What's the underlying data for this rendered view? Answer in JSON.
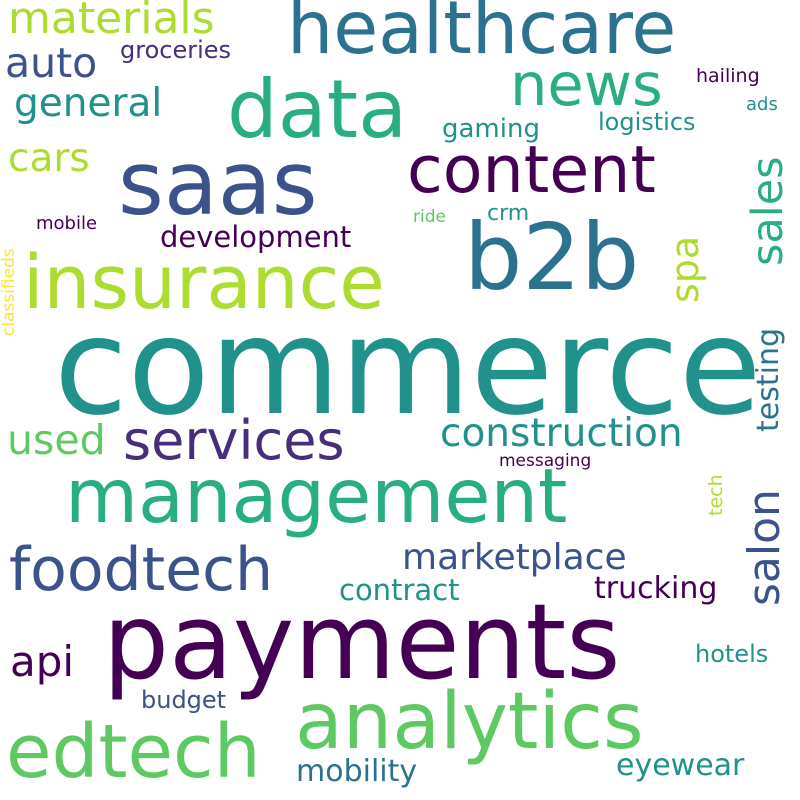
{
  "title": "word cloud",
  "palette": {
    "deep_purple": "#440154",
    "indigo": "#472d7b",
    "slate_blue": "#3b528b",
    "steel_blue": "#2c728e",
    "teal": "#21918c",
    "sea_green": "#28ae80",
    "green": "#5ec962",
    "lime": "#addc30",
    "yellow": "#fde725"
  },
  "words": [
    {
      "text": "commerce",
      "weight": 100,
      "orientation": "horizontal",
      "color": "#21918c"
    },
    {
      "text": "payments",
      "weight": 78,
      "orientation": "horizontal",
      "color": "#440154"
    },
    {
      "text": "management",
      "weight": 56,
      "orientation": "horizontal",
      "color": "#28ae80"
    },
    {
      "text": "saas",
      "weight": 60,
      "orientation": "horizontal",
      "color": "#3b528b"
    },
    {
      "text": "b2b",
      "weight": 60,
      "orientation": "horizontal",
      "color": "#2c728e"
    },
    {
      "text": "insurance",
      "weight": 52,
      "orientation": "horizontal",
      "color": "#addc30"
    },
    {
      "text": "data",
      "weight": 52,
      "orientation": "horizontal",
      "color": "#28ae80"
    },
    {
      "text": "analytics",
      "weight": 50,
      "orientation": "horizontal",
      "color": "#5ec962"
    },
    {
      "text": "healthcare",
      "weight": 44,
      "orientation": "horizontal",
      "color": "#2c728e"
    },
    {
      "text": "edtech",
      "weight": 44,
      "orientation": "horizontal",
      "color": "#5ec962"
    },
    {
      "text": "content",
      "weight": 40,
      "orientation": "horizontal",
      "color": "#440154"
    },
    {
      "text": "foodtech",
      "weight": 38,
      "orientation": "horizontal",
      "color": "#3b528b"
    },
    {
      "text": "news",
      "weight": 38,
      "orientation": "horizontal",
      "color": "#28ae80"
    },
    {
      "text": "services",
      "weight": 34,
      "orientation": "horizontal",
      "color": "#472d7b"
    },
    {
      "text": "construction",
      "weight": 28,
      "orientation": "horizontal",
      "color": "#21918c"
    },
    {
      "text": "marketplace",
      "weight": 26,
      "orientation": "horizontal",
      "color": "#3b528b"
    },
    {
      "text": "salon",
      "weight": 28,
      "orientation": "vertical",
      "color": "#3b528b"
    },
    {
      "text": "sales",
      "weight": 28,
      "orientation": "vertical",
      "color": "#28ae80"
    },
    {
      "text": "materials",
      "weight": 26,
      "orientation": "horizontal",
      "color": "#addc30"
    },
    {
      "text": "used",
      "weight": 26,
      "orientation": "horizontal",
      "color": "#5ec962"
    },
    {
      "text": "general",
      "weight": 26,
      "orientation": "horizontal",
      "color": "#21918c"
    },
    {
      "text": "auto",
      "weight": 26,
      "orientation": "horizontal",
      "color": "#3b528b"
    },
    {
      "text": "cars",
      "weight": 24,
      "orientation": "horizontal",
      "color": "#addc30"
    },
    {
      "text": "api",
      "weight": 24,
      "orientation": "horizontal",
      "color": "#440154"
    },
    {
      "text": "mobility",
      "weight": 22,
      "orientation": "horizontal",
      "color": "#2c728e"
    },
    {
      "text": "eyewear",
      "weight": 22,
      "orientation": "horizontal",
      "color": "#21918c"
    },
    {
      "text": "testing",
      "weight": 22,
      "orientation": "vertical",
      "color": "#2c728e"
    },
    {
      "text": "spa",
      "weight": 22,
      "orientation": "vertical",
      "color": "#addc30"
    },
    {
      "text": "development",
      "weight": 20,
      "orientation": "horizontal",
      "color": "#440154"
    },
    {
      "text": "contract",
      "weight": 20,
      "orientation": "horizontal",
      "color": "#21918c"
    },
    {
      "text": "trucking",
      "weight": 20,
      "orientation": "horizontal",
      "color": "#440154"
    },
    {
      "text": "gaming",
      "weight": 18,
      "orientation": "horizontal",
      "color": "#21918c"
    },
    {
      "text": "groceries",
      "weight": 16,
      "orientation": "horizontal",
      "color": "#472d7b"
    },
    {
      "text": "logistics",
      "weight": 16,
      "orientation": "horizontal",
      "color": "#21918c"
    },
    {
      "text": "hotels",
      "weight": 16,
      "orientation": "horizontal",
      "color": "#21918c"
    },
    {
      "text": "budget",
      "weight": 16,
      "orientation": "horizontal",
      "color": "#3b528b"
    },
    {
      "text": "crm",
      "weight": 14,
      "orientation": "horizontal",
      "color": "#21918c"
    },
    {
      "text": "hailing",
      "weight": 14,
      "orientation": "horizontal",
      "color": "#440154"
    },
    {
      "text": "ads",
      "weight": 12,
      "orientation": "horizontal",
      "color": "#21918c"
    },
    {
      "text": "mobile",
      "weight": 12,
      "orientation": "horizontal",
      "color": "#440154"
    },
    {
      "text": "ride",
      "weight": 12,
      "orientation": "horizontal",
      "color": "#5ec962"
    },
    {
      "text": "messaging",
      "weight": 12,
      "orientation": "horizontal",
      "color": "#440154"
    },
    {
      "text": "tech",
      "weight": 12,
      "orientation": "vertical",
      "color": "#addc30"
    },
    {
      "text": "classifieds",
      "weight": 12,
      "orientation": "vertical",
      "color": "#fde725"
    }
  ]
}
